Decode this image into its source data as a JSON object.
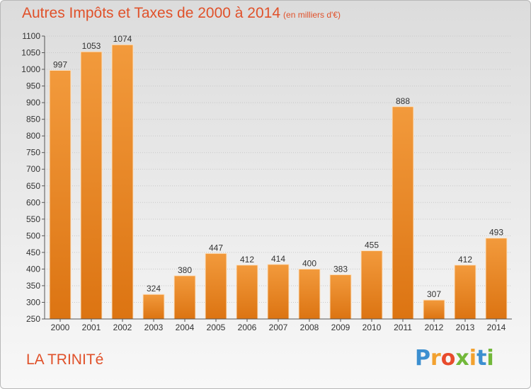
{
  "header": {
    "title": "Autres Impôts et Taxes de 2000 à 2014",
    "subtitle": "(en milliers d'€)"
  },
  "footer": {
    "place": "LA TRINITé",
    "logo_letters": [
      "P",
      "r",
      "o",
      "x",
      "i",
      "t",
      "i"
    ],
    "logo_colors": [
      "#3c8fd0",
      "#f2a12f",
      "#e84b2c",
      "#72b83a",
      "#f2a12f",
      "#3c8fd0",
      "#72b83a"
    ]
  },
  "colors": {
    "bar": "#f29a3c",
    "bar_dark": "#dc7412",
    "title": "#e0512a"
  },
  "chart_data": {
    "type": "bar",
    "categories": [
      "2000",
      "2001",
      "2002",
      "2003",
      "2004",
      "2005",
      "2006",
      "2007",
      "2008",
      "2009",
      "2010",
      "2011",
      "2012",
      "2013",
      "2014"
    ],
    "values": [
      997,
      1053,
      1074,
      324,
      380,
      447,
      412,
      414,
      400,
      383,
      455,
      888,
      307,
      412,
      493
    ],
    "ylim": [
      250,
      1100
    ],
    "yticks": [
      250,
      300,
      350,
      400,
      450,
      500,
      550,
      600,
      650,
      700,
      750,
      800,
      850,
      900,
      950,
      1000,
      1050,
      1100
    ],
    "grid": true,
    "xlabel": "",
    "ylabel": ""
  }
}
